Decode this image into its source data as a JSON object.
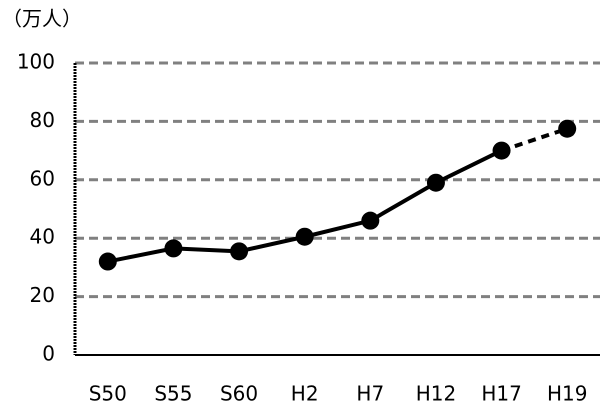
{
  "chart_data": {
    "type": "line",
    "unit_label": "（万人）",
    "categories": [
      "S50",
      "S55",
      "S60",
      "H2",
      "H7",
      "H12",
      "H17",
      "H19"
    ],
    "series": [
      {
        "color": "#000000",
        "values": [
          32,
          36.5,
          35.5,
          40.5,
          46,
          59,
          70,
          77.5
        ]
      }
    ],
    "dashed_from": 6,
    "ylim": [
      0,
      100
    ],
    "yticks": [
      0,
      20,
      40,
      60,
      80,
      100
    ],
    "grid": true
  }
}
